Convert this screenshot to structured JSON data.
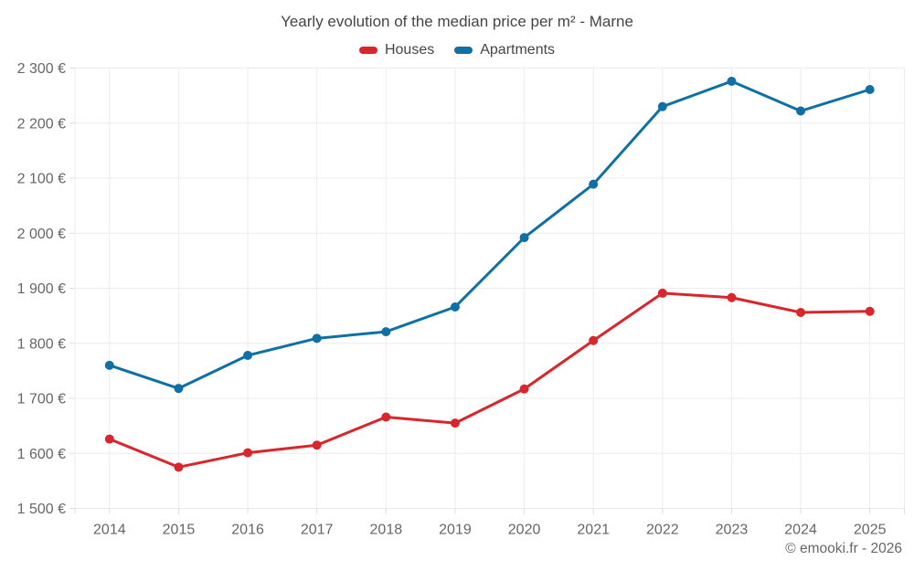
{
  "page": {
    "title": "Yearly evolution of the median price per m² - Marne",
    "attribution": "© emooki.fr - 2026"
  },
  "chart_data": {
    "type": "line",
    "title": "Yearly evolution of the median price per m² - Marne",
    "categories": [
      2014,
      2015,
      2016,
      2017,
      2018,
      2019,
      2020,
      2021,
      2022,
      2023,
      2024,
      2025
    ],
    "series": [
      {
        "name": "Houses",
        "color": "#d9262c",
        "values": [
          1626,
          1575,
          1601,
          1615,
          1666,
          1655,
          1717,
          1805,
          1891,
          1883,
          1856,
          1858
        ]
      },
      {
        "name": "Apartments",
        "color": "#0f70a6",
        "values": [
          1760,
          1718,
          1778,
          1809,
          1821,
          1866,
          1992,
          2089,
          2230,
          2276,
          2222,
          2261
        ]
      }
    ],
    "xlabel": "",
    "ylabel": "",
    "ylim": [
      1500,
      2300
    ],
    "ytick_step": 100,
    "ytick_suffix": " €",
    "ytick_labels": [
      "1 500 €",
      "1 600 €",
      "1 700 €",
      "1 800 €",
      "1 900 €",
      "2 000 €",
      "2 100 €",
      "2 200 €",
      "2 300 €"
    ],
    "grid": true,
    "legend_position": "top",
    "marker": "circle"
  }
}
